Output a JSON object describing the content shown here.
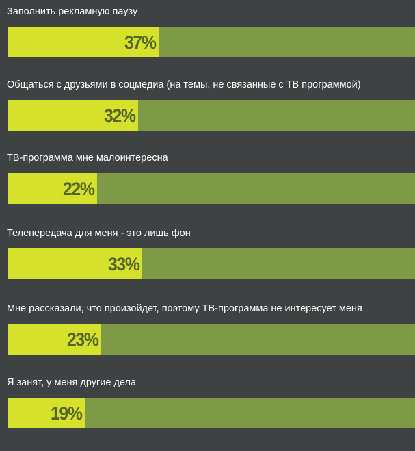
{
  "chart_data": {
    "type": "bar",
    "categories": [
      "Заполнить рекламную паузу",
      "Общаться с друзьями в соцмедиа (на темы, не связанные с ТВ программой)",
      "ТВ-программа мне малоинтересна",
      "Телепередача для меня - это лишь фон",
      "Мне рассказали, что произойдет, поэтому ТВ-программа не интересует меня",
      "Я занят, у меня другие дела"
    ],
    "values": [
      37,
      32,
      22,
      33,
      23,
      19
    ],
    "value_labels": [
      "37%",
      "32%",
      "22%",
      "33%",
      "23%",
      "19%"
    ],
    "ylim": [
      0,
      100
    ],
    "orientation": "horizontal",
    "grid": false,
    "colors": {
      "background": "#3e4242",
      "bar_fill": "#d6e12b",
      "bar_track": "#7e9a46",
      "value_text": "#55662c",
      "label_text": "#ffffff"
    }
  }
}
